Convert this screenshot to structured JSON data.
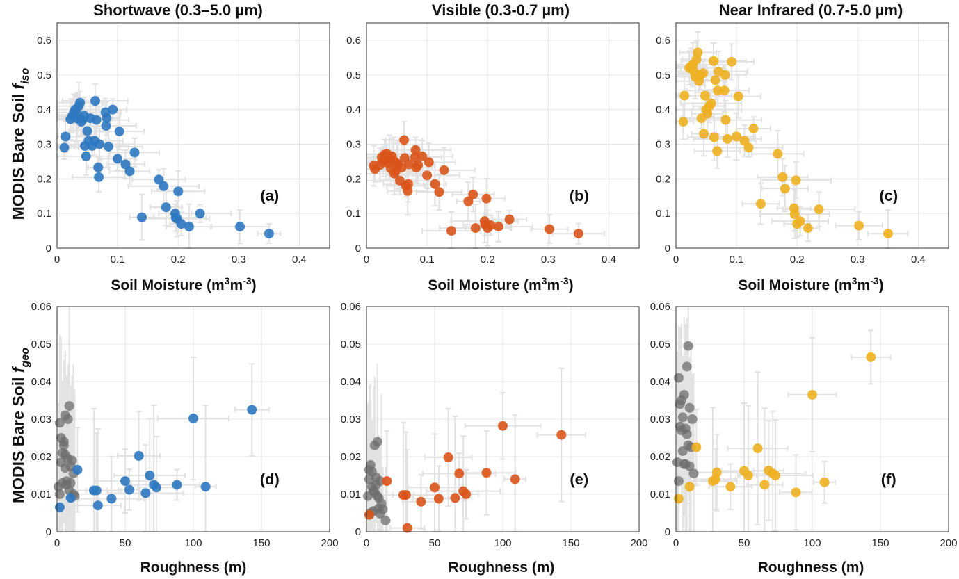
{
  "figure": {
    "ylabel_top": {
      "pre": "MODIS  Bare  Soil  ",
      "italic": "f",
      "sub": "iso"
    },
    "ylabel_bottom": {
      "pre": "MODIS  Bare  Soil  ",
      "italic": "f",
      "sub": "geo"
    },
    "xlabel_top": {
      "pre": "Soil  Moisture  (m",
      "sup1": "3",
      "mid": "m",
      "sup2": "-3",
      "post": ")"
    },
    "xlabel_bottom": "Roughness (m)"
  },
  "colors": {
    "blue": "#2e78c1",
    "orange": "#d9541a",
    "yellow": "#eeb021",
    "grey": "#6e6e6e",
    "errbar": "#e2e2e2",
    "grid": "#e6e6e6",
    "axis": "#333333"
  },
  "chart_data": [
    {
      "id": "a",
      "type": "scatter",
      "title": "Shortwave (0.3–5.0 µm)",
      "panel_label": "(a)",
      "xlim": [
        0,
        0.45
      ],
      "ylim": [
        0,
        0.65
      ],
      "xticks": [
        "0",
        "0.1",
        "0.2",
        "0.3",
        "0.4"
      ],
      "yticks": [
        "0",
        "0.1",
        "0.2",
        "0.3",
        "0.4",
        "0.5",
        "0.6"
      ],
      "grid": true,
      "color": "blue",
      "x": [
        0.012,
        0.014,
        0.022,
        0.025,
        0.028,
        0.03,
        0.032,
        0.034,
        0.036,
        0.038,
        0.04,
        0.042,
        0.045,
        0.046,
        0.048,
        0.05,
        0.052,
        0.055,
        0.058,
        0.062,
        0.063,
        0.065,
        0.068,
        0.069,
        0.07,
        0.08,
        0.081,
        0.082,
        0.085,
        0.092,
        0.1,
        0.103,
        0.113,
        0.12,
        0.128,
        0.14,
        0.168,
        0.176,
        0.18,
        0.195,
        0.196,
        0.198,
        0.2,
        0.205,
        0.218,
        0.236,
        0.302,
        0.35
      ],
      "y": [
        0.29,
        0.322,
        0.372,
        0.381,
        0.392,
        0.4,
        0.375,
        0.385,
        0.41,
        0.42,
        0.365,
        0.37,
        0.382,
        0.295,
        0.265,
        0.338,
        0.31,
        0.375,
        0.295,
        0.31,
        0.425,
        0.37,
        0.233,
        0.205,
        0.3,
        0.392,
        0.353,
        0.375,
        0.293,
        0.4,
        0.258,
        0.337,
        0.242,
        0.222,
        0.276,
        0.089,
        0.198,
        0.179,
        0.118,
        0.1,
        0.088,
        0.085,
        0.164,
        0.07,
        0.062,
        0.1,
        0.062,
        0.042
      ]
    },
    {
      "id": "b",
      "type": "scatter",
      "title": "Visible (0.3-0.7 µm)",
      "panel_label": "(b)",
      "xlim": [
        0,
        0.45
      ],
      "ylim": [
        0,
        0.65
      ],
      "xticks": [
        "0",
        "0.1",
        "0.2",
        "0.3",
        "0.4"
      ],
      "yticks": [
        "0",
        "0.1",
        "0.2",
        "0.3",
        "0.4",
        "0.5",
        "0.6"
      ],
      "grid": true,
      "color": "orange",
      "x": [
        0.012,
        0.014,
        0.022,
        0.025,
        0.028,
        0.03,
        0.032,
        0.034,
        0.036,
        0.038,
        0.04,
        0.042,
        0.045,
        0.046,
        0.048,
        0.05,
        0.052,
        0.055,
        0.058,
        0.062,
        0.063,
        0.065,
        0.068,
        0.069,
        0.07,
        0.08,
        0.081,
        0.082,
        0.085,
        0.092,
        0.1,
        0.103,
        0.113,
        0.12,
        0.128,
        0.14,
        0.168,
        0.176,
        0.18,
        0.195,
        0.196,
        0.198,
        0.2,
        0.205,
        0.218,
        0.236,
        0.302,
        0.35
      ],
      "y": [
        0.238,
        0.228,
        0.24,
        0.262,
        0.25,
        0.27,
        0.255,
        0.272,
        0.245,
        0.26,
        0.23,
        0.265,
        0.252,
        0.215,
        0.222,
        0.245,
        0.24,
        0.195,
        0.232,
        0.312,
        0.26,
        0.18,
        0.165,
        0.185,
        0.242,
        0.262,
        0.283,
        0.232,
        0.24,
        0.265,
        0.21,
        0.248,
        0.185,
        0.162,
        0.225,
        0.05,
        0.135,
        0.155,
        0.058,
        0.078,
        0.068,
        0.143,
        0.058,
        0.066,
        0.062,
        0.083,
        0.055,
        0.042
      ]
    },
    {
      "id": "c",
      "type": "scatter",
      "title": "Near Infrared (0.7-5.0 µm)",
      "panel_label": "(c)",
      "xlim": [
        0,
        0.45
      ],
      "ylim": [
        0,
        0.65
      ],
      "xticks": [
        "0",
        "0.1",
        "0.2",
        "0.3",
        "0.4"
      ],
      "yticks": [
        "0",
        "0.1",
        "0.2",
        "0.3",
        "0.4",
        "0.5",
        "0.6"
      ],
      "grid": true,
      "color": "yellow",
      "x": [
        0.012,
        0.014,
        0.022,
        0.025,
        0.028,
        0.03,
        0.032,
        0.034,
        0.036,
        0.038,
        0.04,
        0.042,
        0.045,
        0.046,
        0.048,
        0.05,
        0.052,
        0.055,
        0.058,
        0.062,
        0.063,
        0.065,
        0.068,
        0.069,
        0.07,
        0.08,
        0.081,
        0.082,
        0.085,
        0.092,
        0.1,
        0.103,
        0.113,
        0.12,
        0.128,
        0.14,
        0.168,
        0.176,
        0.18,
        0.195,
        0.196,
        0.198,
        0.2,
        0.205,
        0.218,
        0.236,
        0.302,
        0.35
      ],
      "y": [
        0.365,
        0.44,
        0.52,
        0.525,
        0.53,
        0.51,
        0.495,
        0.545,
        0.565,
        0.482,
        0.5,
        0.375,
        0.505,
        0.33,
        0.44,
        0.4,
        0.388,
        0.41,
        0.418,
        0.54,
        0.32,
        0.485,
        0.28,
        0.455,
        0.51,
        0.455,
        0.5,
        0.37,
        0.315,
        0.538,
        0.322,
        0.438,
        0.31,
        0.29,
        0.345,
        0.128,
        0.272,
        0.205,
        0.172,
        0.115,
        0.098,
        0.196,
        0.07,
        0.078,
        0.058,
        0.112,
        0.065,
        0.042
      ]
    },
    {
      "id": "d",
      "type": "scatter",
      "panel_label": "(d)",
      "xlim": [
        0,
        200
      ],
      "ylim": [
        0,
        0.06
      ],
      "xticks": [
        "0",
        "50",
        "100",
        "150",
        "200"
      ],
      "yticks": [
        "0",
        "0.01",
        "0.02",
        "0.03",
        "0.04",
        "0.05",
        "0.06"
      ],
      "grid": true,
      "color": "blue",
      "grey_x": [
        1,
        2,
        2,
        3,
        3,
        4,
        4,
        5,
        5,
        6,
        6,
        6,
        7,
        7,
        8,
        8,
        9,
        9,
        10,
        10,
        11,
        12,
        12,
        13
      ],
      "grey_y": [
        0.012,
        0.029,
        0.01,
        0.0185,
        0.025,
        0.021,
        0.013,
        0.024,
        0.023,
        0.017,
        0.0205,
        0.031,
        0.0135,
        0.0125,
        0.0195,
        0.03,
        0.011,
        0.0335,
        0.0175,
        0.013,
        0.019,
        0.01,
        0.0155,
        0.0095
      ],
      "x": [
        2,
        10,
        15,
        27,
        29,
        30,
        40,
        50,
        53,
        60,
        65,
        68,
        71,
        73,
        88,
        109,
        100,
        143
      ],
      "y": [
        0.0065,
        0.009,
        0.0165,
        0.011,
        0.011,
        0.007,
        0.0088,
        0.0135,
        0.0112,
        0.0202,
        0.0103,
        0.015,
        0.0125,
        0.0118,
        0.0125,
        0.012,
        0.0302,
        0.0325
      ]
    },
    {
      "id": "e",
      "type": "scatter",
      "panel_label": "(e)",
      "xlim": [
        0,
        200
      ],
      "ylim": [
        0,
        0.06
      ],
      "xticks": [
        "0",
        "50",
        "100",
        "150",
        "200"
      ],
      "yticks": [
        "0",
        "0.01",
        "0.02",
        "0.03",
        "0.04",
        "0.05",
        "0.06"
      ],
      "grid": true,
      "color": "orange",
      "grey_x": [
        1,
        2,
        2,
        3,
        3,
        4,
        4,
        5,
        5,
        6,
        6,
        7,
        7,
        8,
        8,
        9,
        9,
        10,
        10,
        11,
        12,
        14
      ],
      "grey_y": [
        0.0095,
        0.0165,
        0.014,
        0.0178,
        0.005,
        0.016,
        0.012,
        0.0055,
        0.011,
        0.023,
        0.0105,
        0.0125,
        0.0145,
        0.024,
        0.0095,
        0.0062,
        0.009,
        0.0135,
        0.0048,
        0.0075,
        0.006,
        0.003
      ],
      "x": [
        2,
        15,
        27,
        29,
        30,
        40,
        50,
        53,
        60,
        65,
        68,
        71,
        73,
        88,
        109,
        100,
        143
      ],
      "y": [
        0.0045,
        0.0135,
        0.0098,
        0.0098,
        0.001,
        0.008,
        0.0118,
        0.0088,
        0.0198,
        0.009,
        0.0155,
        0.0108,
        0.01,
        0.0157,
        0.014,
        0.0282,
        0.0258
      ]
    },
    {
      "id": "f",
      "type": "scatter",
      "panel_label": "(f)",
      "xlim": [
        0,
        200
      ],
      "ylim": [
        0,
        0.06
      ],
      "xticks": [
        "0",
        "50",
        "100",
        "150",
        "200"
      ],
      "yticks": [
        "0",
        "0.01",
        "0.02",
        "0.03",
        "0.04",
        "0.05",
        "0.06"
      ],
      "grid": true,
      "color": "yellow",
      "grey_x": [
        1,
        2,
        2,
        3,
        3,
        4,
        4,
        5,
        5,
        6,
        6,
        7,
        7,
        8,
        8,
        9,
        9,
        10,
        10,
        11,
        12,
        13
      ],
      "grey_y": [
        0.0185,
        0.0135,
        0.041,
        0.034,
        0.028,
        0.035,
        0.027,
        0.0305,
        0.0215,
        0.018,
        0.0365,
        0.0275,
        0.018,
        0.044,
        0.026,
        0.0495,
        0.023,
        0.033,
        0.0175,
        0.0225,
        0.03,
        0.0155
      ],
      "x": [
        2,
        10,
        15,
        27,
        29,
        30,
        40,
        50,
        53,
        60,
        65,
        68,
        71,
        73,
        88,
        109,
        100,
        143
      ],
      "y": [
        0.0088,
        0.012,
        0.0225,
        0.0135,
        0.014,
        0.0158,
        0.012,
        0.0162,
        0.015,
        0.0222,
        0.0125,
        0.0163,
        0.0155,
        0.015,
        0.0105,
        0.0132,
        0.0365,
        0.0465
      ]
    }
  ]
}
